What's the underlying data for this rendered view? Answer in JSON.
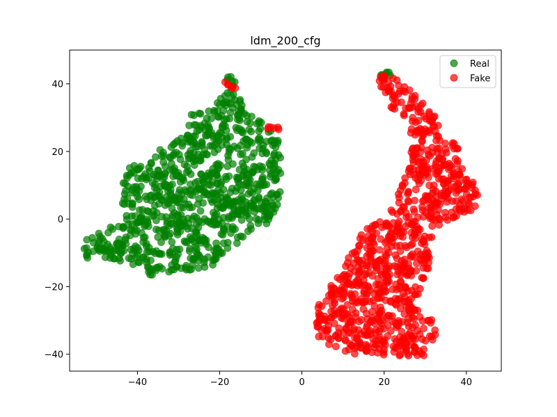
{
  "chart_data": {
    "type": "scatter",
    "title": "ldm_200_cfg",
    "xlabel": "",
    "ylabel": "",
    "xlim": [
      -56.5,
      48.5
    ],
    "ylim": [
      -45,
      50
    ],
    "xticks": [
      -40,
      -20,
      0,
      20,
      40
    ],
    "yticks": [
      -40,
      -20,
      0,
      20,
      40
    ],
    "xtick_labels": [
      "−40",
      "−20",
      "0",
      "20",
      "40"
    ],
    "ytick_labels": [
      "−40",
      "−20",
      "0",
      "20",
      "40"
    ],
    "grid": false,
    "legend": {
      "placement": "top-right"
    },
    "series": [
      {
        "name": "Real",
        "color": "#008000",
        "regions": [
          {
            "polygon": [
              [
                -53,
                -12
              ],
              [
                -53,
                -4
              ],
              [
                -50,
                -3
              ],
              [
                -45,
                -2
              ],
              [
                -43,
                0
              ],
              [
                -44,
                6
              ],
              [
                -43,
                15
              ],
              [
                -38,
                17
              ],
              [
                -34,
                21
              ],
              [
                -28,
                25
              ],
              [
                -27,
                31
              ],
              [
                -22,
                33
              ],
              [
                -20,
                38
              ],
              [
                -17,
                45
              ],
              [
                -14,
                32
              ],
              [
                -8,
                27
              ],
              [
                -5,
                22
              ],
              [
                -5,
                8
              ],
              [
                -7,
                -2
              ],
              [
                -12,
                -3
              ],
              [
                -16,
                -8
              ],
              [
                -22,
                -14
              ],
              [
                -30,
                -16
              ],
              [
                -37,
                -17
              ],
              [
                -42,
                -13
              ],
              [
                -47,
                -13
              ]
            ],
            "count": 900
          },
          {
            "polygon": [
              [
                18,
                43
              ],
              [
                21,
                44
              ],
              [
                23,
                42
              ],
              [
                20,
                41
              ]
            ],
            "count": 8
          }
        ]
      },
      {
        "name": "Fake",
        "color": "#ff0000",
        "regions": [
          {
            "polygon": [
              [
                17,
                44
              ],
              [
                23,
                42
              ],
              [
                28,
                36
              ],
              [
                33,
                30
              ],
              [
                34,
                24
              ],
              [
                38,
                22
              ],
              [
                39,
                15
              ],
              [
                43,
                9
              ],
              [
                42,
                3
              ],
              [
                36,
                0
              ],
              [
                32,
                -3
              ],
              [
                31,
                -15
              ],
              [
                29,
                -20
              ],
              [
                27,
                -26
              ],
              [
                32,
                -30
              ],
              [
                34,
                -40
              ],
              [
                25,
                -41
              ],
              [
                17,
                -40
              ],
              [
                12,
                -40
              ],
              [
                6,
                -38
              ],
              [
                3,
                -33
              ],
              [
                4,
                -25
              ],
              [
                8,
                -18
              ],
              [
                12,
                -10
              ],
              [
                15,
                -3
              ],
              [
                20,
                0
              ],
              [
                23,
                6
              ],
              [
                26,
                15
              ],
              [
                27,
                24
              ],
              [
                25,
                29
              ],
              [
                21,
                34
              ],
              [
                18,
                40
              ]
            ],
            "count": 900
          },
          {
            "polygon": [
              [
                -19,
                41
              ],
              [
                -14,
                37
              ],
              [
                -18,
                39
              ]
            ],
            "count": 6
          },
          {
            "polygon": [
              [
                -10,
                27
              ],
              [
                -6,
                28
              ],
              [
                -5,
                26
              ]
            ],
            "count": 6
          }
        ]
      }
    ]
  }
}
